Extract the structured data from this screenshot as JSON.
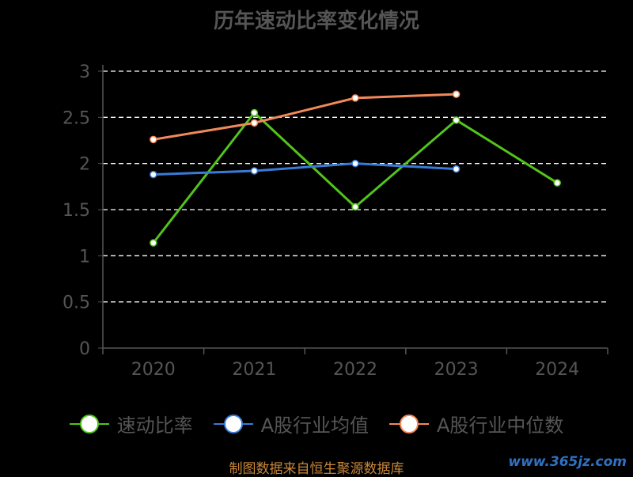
{
  "chart_data": {
    "type": "line",
    "title": "历年速动比率变化情况",
    "categories": [
      "2020",
      "2021",
      "2022",
      "2023",
      "2024"
    ],
    "ylim": [
      0,
      3
    ],
    "y_ticks": [
      "0",
      "0.5",
      "1",
      "1.5",
      "2",
      "2.5",
      "3"
    ],
    "grid": true,
    "legend_position": "bottom",
    "series": [
      {
        "name": "速动比率",
        "color": "#52c41a",
        "values": [
          1.14,
          2.55,
          1.53,
          2.47,
          1.79
        ]
      },
      {
        "name": "A股行业均值",
        "color": "#3a7bd5",
        "values": [
          1.88,
          1.92,
          2.0,
          1.94,
          null
        ]
      },
      {
        "name": "A股行业中位数",
        "color": "#f2895a",
        "values": [
          2.26,
          2.44,
          2.71,
          2.75,
          null
        ]
      }
    ]
  },
  "source_note": "制图数据来自恒生聚源数据库",
  "watermark": "www.365jz.com"
}
